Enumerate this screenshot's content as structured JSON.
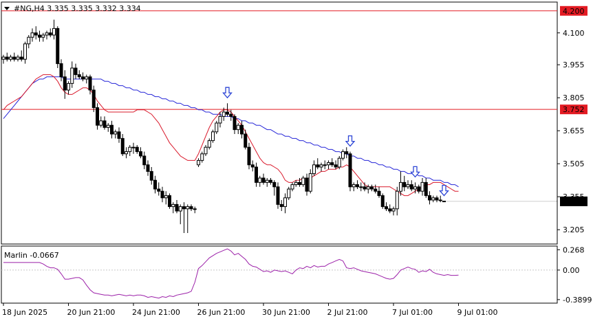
{
  "header": {
    "symbol_line": "#NG,H4  3.335 3.335 3.332 3.334"
  },
  "colors": {
    "red_line": "#e31b23",
    "ma_blue": "#2424d8",
    "ma_red": "#d9182a",
    "marlin": "#9b1fa8",
    "arrow": "#2e46d6",
    "candle": "#000000",
    "label_red_bg": "#e31b23",
    "label_dark_bg": "#000000"
  },
  "chart_data": [
    {
      "type": "candlestick",
      "title": "#NG,H4",
      "last_ohlc": {
        "open": 3.335,
        "high": 3.335,
        "low": 3.332,
        "close": 3.334
      },
      "ylim": [
        3.14,
        4.24
      ],
      "y_ticks": [
        "4.100",
        "3.955",
        "3.805",
        "3.655",
        "3.505",
        "3.355",
        "3.205"
      ],
      "y_tick_values": [
        4.1,
        3.955,
        3.805,
        3.655,
        3.505,
        3.355,
        3.205
      ],
      "x_ticks": [
        "18 Jun 2025",
        "20 Jun 21:00",
        "24 Jun 21:00",
        "26 Jun 21:00",
        "30 Jun 21:00",
        "2 Jul 21:00",
        "7 Jul 01:00",
        "9 Jul 01:00"
      ],
      "x_tick_index": [
        0,
        18,
        36,
        54,
        72,
        90,
        108,
        126
      ],
      "horizontal_levels": [
        {
          "value": 4.2,
          "label": "4.200"
        },
        {
          "value": 3.752,
          "label": "3.752"
        }
      ],
      "current_price": {
        "value": 3.334,
        "label": "3.334"
      },
      "arrow_markers_index": [
        62,
        96,
        114,
        122
      ],
      "ohlc": [
        [
          3.98,
          4.0,
          3.96,
          3.99
        ],
        [
          3.99,
          4.01,
          3.97,
          3.98
        ],
        [
          3.98,
          4.0,
          3.97,
          3.99
        ],
        [
          3.99,
          4.01,
          3.97,
          3.98
        ],
        [
          3.98,
          4.0,
          3.97,
          3.99
        ],
        [
          3.99,
          4.02,
          3.97,
          3.98
        ],
        [
          3.98,
          4.06,
          3.96,
          4.05
        ],
        [
          4.05,
          4.09,
          4.03,
          4.08
        ],
        [
          4.08,
          4.12,
          4.06,
          4.1
        ],
        [
          4.1,
          4.13,
          4.07,
          4.09
        ],
        [
          4.09,
          4.11,
          4.06,
          4.08
        ],
        [
          4.08,
          4.1,
          4.06,
          4.09
        ],
        [
          4.09,
          4.11,
          4.07,
          4.1
        ],
        [
          4.1,
          4.12,
          4.08,
          4.09
        ],
        [
          4.09,
          4.16,
          4.07,
          4.12
        ],
        [
          4.12,
          4.13,
          3.94,
          3.96
        ],
        [
          3.96,
          3.98,
          3.88,
          3.9
        ],
        [
          3.9,
          3.93,
          3.8,
          3.84
        ],
        [
          3.84,
          3.88,
          3.82,
          3.87
        ],
        [
          3.87,
          3.97,
          3.85,
          3.94
        ],
        [
          3.94,
          3.96,
          3.89,
          3.91
        ],
        [
          3.91,
          3.93,
          3.89,
          3.9
        ],
        [
          3.9,
          3.92,
          3.88,
          3.89
        ],
        [
          3.89,
          3.91,
          3.87,
          3.9
        ],
        [
          3.9,
          3.91,
          3.82,
          3.84
        ],
        [
          3.84,
          3.86,
          3.74,
          3.76
        ],
        [
          3.76,
          3.78,
          3.66,
          3.68
        ],
        [
          3.68,
          3.72,
          3.67,
          3.7
        ],
        [
          3.7,
          3.72,
          3.66,
          3.67
        ],
        [
          3.67,
          3.69,
          3.65,
          3.68
        ],
        [
          3.68,
          3.7,
          3.62,
          3.64
        ],
        [
          3.64,
          3.66,
          3.62,
          3.65
        ],
        [
          3.65,
          3.67,
          3.6,
          3.62
        ],
        [
          3.62,
          3.64,
          3.54,
          3.55
        ],
        [
          3.55,
          3.58,
          3.53,
          3.56
        ],
        [
          3.56,
          3.59,
          3.54,
          3.58
        ],
        [
          3.58,
          3.6,
          3.55,
          3.58
        ],
        [
          3.58,
          3.59,
          3.55,
          3.56
        ],
        [
          3.56,
          3.58,
          3.53,
          3.54
        ],
        [
          3.54,
          3.56,
          3.48,
          3.5
        ],
        [
          3.5,
          3.52,
          3.45,
          3.47
        ],
        [
          3.47,
          3.49,
          3.41,
          3.43
        ],
        [
          3.43,
          3.45,
          3.37,
          3.39
        ],
        [
          3.39,
          3.42,
          3.36,
          3.38
        ],
        [
          3.38,
          3.4,
          3.33,
          3.35
        ],
        [
          3.35,
          3.38,
          3.32,
          3.36
        ],
        [
          3.36,
          3.37,
          3.3,
          3.31
        ],
        [
          3.31,
          3.33,
          3.28,
          3.32
        ],
        [
          3.32,
          3.34,
          3.28,
          3.29
        ],
        [
          3.29,
          3.32,
          3.23,
          3.31
        ],
        [
          3.31,
          3.33,
          3.19,
          3.3
        ],
        [
          3.3,
          3.32,
          3.19,
          3.31
        ],
        [
          3.31,
          3.32,
          3.29,
          3.3
        ],
        [
          3.3,
          3.31,
          3.28,
          3.3
        ],
        [
          3.5,
          3.53,
          3.49,
          3.52
        ],
        [
          3.52,
          3.56,
          3.51,
          3.55
        ],
        [
          3.55,
          3.59,
          3.54,
          3.58
        ],
        [
          3.58,
          3.62,
          3.57,
          3.61
        ],
        [
          3.61,
          3.66,
          3.6,
          3.65
        ],
        [
          3.65,
          3.7,
          3.64,
          3.69
        ],
        [
          3.69,
          3.74,
          3.67,
          3.72
        ],
        [
          3.72,
          3.76,
          3.7,
          3.74
        ],
        [
          3.74,
          3.78,
          3.72,
          3.73
        ],
        [
          3.73,
          3.75,
          3.7,
          3.72
        ],
        [
          3.72,
          3.73,
          3.64,
          3.66
        ],
        [
          3.66,
          3.69,
          3.64,
          3.68
        ],
        [
          3.68,
          3.7,
          3.62,
          3.64
        ],
        [
          3.64,
          3.66,
          3.57,
          3.58
        ],
        [
          3.58,
          3.6,
          3.48,
          3.5
        ],
        [
          3.5,
          3.52,
          3.47,
          3.49
        ],
        [
          3.49,
          3.51,
          3.4,
          3.42
        ],
        [
          3.42,
          3.45,
          3.4,
          3.44
        ],
        [
          3.44,
          3.46,
          3.41,
          3.42
        ],
        [
          3.42,
          3.44,
          3.4,
          3.43
        ],
        [
          3.43,
          3.44,
          3.41,
          3.42
        ],
        [
          3.42,
          3.43,
          3.36,
          3.4
        ],
        [
          3.4,
          3.42,
          3.3,
          3.32
        ],
        [
          3.32,
          3.34,
          3.29,
          3.31
        ],
        [
          3.31,
          3.37,
          3.28,
          3.35
        ],
        [
          3.35,
          3.4,
          3.34,
          3.39
        ],
        [
          3.39,
          3.42,
          3.38,
          3.41
        ],
        [
          3.41,
          3.43,
          3.4,
          3.42
        ],
        [
          3.42,
          3.44,
          3.4,
          3.41
        ],
        [
          3.41,
          3.45,
          3.4,
          3.44
        ],
        [
          3.44,
          3.46,
          3.36,
          3.38
        ],
        [
          3.38,
          3.48,
          3.37,
          3.46
        ],
        [
          3.46,
          3.52,
          3.45,
          3.5
        ],
        [
          3.5,
          3.53,
          3.48,
          3.49
        ],
        [
          3.49,
          3.51,
          3.47,
          3.5
        ],
        [
          3.5,
          3.52,
          3.48,
          3.5
        ],
        [
          3.5,
          3.52,
          3.48,
          3.51
        ],
        [
          3.51,
          3.53,
          3.49,
          3.5
        ],
        [
          3.5,
          3.52,
          3.48,
          3.49
        ],
        [
          3.49,
          3.54,
          3.48,
          3.53
        ],
        [
          3.53,
          3.57,
          3.52,
          3.56
        ],
        [
          3.56,
          3.58,
          3.53,
          3.55
        ],
        [
          3.55,
          3.56,
          3.38,
          3.4
        ],
        [
          3.4,
          3.42,
          3.38,
          3.41
        ],
        [
          3.41,
          3.43,
          3.39,
          3.4
        ],
        [
          3.4,
          3.42,
          3.38,
          3.4
        ],
        [
          3.4,
          3.42,
          3.38,
          3.39
        ],
        [
          3.39,
          3.41,
          3.37,
          3.4
        ],
        [
          3.4,
          3.41,
          3.38,
          3.39
        ],
        [
          3.39,
          3.41,
          3.37,
          3.38
        ],
        [
          3.38,
          3.4,
          3.35,
          3.36
        ],
        [
          3.36,
          3.37,
          3.3,
          3.31
        ],
        [
          3.31,
          3.33,
          3.29,
          3.3
        ],
        [
          3.3,
          3.32,
          3.28,
          3.29
        ],
        [
          3.29,
          3.31,
          3.27,
          3.3
        ],
        [
          3.3,
          3.4,
          3.27,
          3.38
        ],
        [
          3.38,
          3.47,
          3.36,
          3.42
        ],
        [
          3.42,
          3.45,
          3.38,
          3.4
        ],
        [
          3.4,
          3.43,
          3.39,
          3.41
        ],
        [
          3.41,
          3.43,
          3.38,
          3.39
        ],
        [
          3.39,
          3.42,
          3.37,
          3.4
        ],
        [
          3.4,
          3.41,
          3.37,
          3.38
        ],
        [
          3.38,
          3.44,
          3.36,
          3.42
        ],
        [
          3.42,
          3.44,
          3.35,
          3.36
        ],
        [
          3.36,
          3.38,
          3.32,
          3.34
        ],
        [
          3.34,
          3.36,
          3.33,
          3.35
        ],
        [
          3.35,
          3.36,
          3.33,
          3.34
        ],
        [
          3.34,
          3.36,
          3.33,
          3.34
        ],
        [
          3.335,
          3.335,
          3.332,
          3.334
        ]
      ],
      "ma_blue": [
        3.71,
        3.73,
        3.75,
        3.77,
        3.79,
        3.81,
        3.83,
        3.85,
        3.87,
        3.88,
        3.89,
        3.89,
        3.9,
        3.9,
        3.9,
        3.9,
        3.9,
        3.89,
        3.89,
        3.89,
        3.89,
        3.89,
        3.89,
        3.89,
        3.89,
        3.89,
        3.89,
        3.89,
        3.88,
        3.88,
        3.87,
        3.87,
        3.86,
        3.86,
        3.85,
        3.85,
        3.84,
        3.84,
        3.83,
        3.83,
        3.82,
        3.82,
        3.81,
        3.81,
        3.8,
        3.8,
        3.79,
        3.79,
        3.78,
        3.78,
        3.77,
        3.77,
        3.76,
        3.76,
        3.75,
        3.75,
        3.74,
        3.74,
        3.73,
        3.73,
        3.73,
        3.72,
        3.72,
        3.72,
        3.71,
        3.71,
        3.7,
        3.7,
        3.69,
        3.69,
        3.68,
        3.68,
        3.67,
        3.66,
        3.66,
        3.65,
        3.64,
        3.64,
        3.63,
        3.63,
        3.62,
        3.62,
        3.61,
        3.61,
        3.6,
        3.6,
        3.59,
        3.59,
        3.58,
        3.58,
        3.57,
        3.57,
        3.56,
        3.56,
        3.55,
        3.55,
        3.54,
        3.54,
        3.53,
        3.53,
        3.52,
        3.52,
        3.51,
        3.51,
        3.5,
        3.5,
        3.49,
        3.49,
        3.48,
        3.48,
        3.47,
        3.47,
        3.46,
        3.46,
        3.46,
        3.45,
        3.45,
        3.44,
        3.44,
        3.43,
        3.43,
        3.43,
        3.42,
        3.42,
        3.41,
        3.41,
        3.4
      ],
      "ma_red": [
        3.75,
        3.77,
        3.78,
        3.79,
        3.8,
        3.81,
        3.83,
        3.85,
        3.87,
        3.89,
        3.9,
        3.91,
        3.91,
        3.91,
        3.9,
        3.88,
        3.85,
        3.83,
        3.82,
        3.82,
        3.83,
        3.84,
        3.85,
        3.85,
        3.84,
        3.82,
        3.79,
        3.77,
        3.75,
        3.74,
        3.74,
        3.74,
        3.74,
        3.74,
        3.74,
        3.74,
        3.74,
        3.75,
        3.75,
        3.75,
        3.74,
        3.73,
        3.71,
        3.69,
        3.66,
        3.63,
        3.6,
        3.58,
        3.56,
        3.54,
        3.53,
        3.52,
        3.52,
        3.52,
        3.55,
        3.59,
        3.63,
        3.67,
        3.7,
        3.72,
        3.74,
        3.75,
        3.75,
        3.74,
        3.72,
        3.7,
        3.68,
        3.65,
        3.62,
        3.59,
        3.56,
        3.53,
        3.51,
        3.5,
        3.5,
        3.49,
        3.48,
        3.46,
        3.43,
        3.42,
        3.42,
        3.43,
        3.43,
        3.44,
        3.44,
        3.44,
        3.45,
        3.46,
        3.47,
        3.47,
        3.48,
        3.48,
        3.48,
        3.49,
        3.49,
        3.5,
        3.49,
        3.47,
        3.45,
        3.43,
        3.41,
        3.4,
        3.4,
        3.4,
        3.4,
        3.4,
        3.4,
        3.4,
        3.39,
        3.38,
        3.37,
        3.36,
        3.36,
        3.37,
        3.38,
        3.39,
        3.4,
        3.41,
        3.41,
        3.42,
        3.42,
        3.42,
        3.41,
        3.4,
        3.39,
        3.38,
        3.38
      ]
    },
    {
      "type": "line",
      "title": "Marlin -0.0667",
      "ylim": [
        -0.4,
        0.28
      ],
      "y_ticks": [
        "0.268",
        "0.00",
        "-0.3899"
      ],
      "y_tick_values": [
        0.268,
        0.0,
        -0.3899
      ],
      "series": [
        {
          "values": [
            0.1,
            0.1,
            0.1,
            0.1,
            0.1,
            0.1,
            0.1,
            0.1,
            0.1,
            0.1,
            0.1,
            0.08,
            0.05,
            0.03,
            0.03,
            0.01,
            -0.05,
            -0.12,
            -0.12,
            -0.11,
            -0.1,
            -0.1,
            -0.13,
            -0.2,
            -0.26,
            -0.3,
            -0.31,
            -0.32,
            -0.33,
            -0.33,
            -0.34,
            -0.33,
            -0.32,
            -0.33,
            -0.34,
            -0.33,
            -0.34,
            -0.33,
            -0.33,
            -0.34,
            -0.36,
            -0.35,
            -0.36,
            -0.37,
            -0.35,
            -0.36,
            -0.34,
            -0.35,
            -0.33,
            -0.32,
            -0.31,
            -0.3,
            -0.28,
            -0.16,
            0.02,
            0.06,
            0.11,
            0.16,
            0.19,
            0.22,
            0.24,
            0.26,
            0.28,
            0.25,
            0.2,
            0.22,
            0.18,
            0.14,
            0.08,
            0.05,
            0.04,
            0.01,
            -0.02,
            -0.01,
            -0.03,
            0.0,
            -0.01,
            -0.02,
            -0.01,
            -0.03,
            -0.05,
            0.0,
            0.03,
            0.02,
            0.05,
            0.03,
            0.06,
            0.04,
            0.05,
            0.05,
            0.08,
            0.1,
            0.12,
            0.14,
            0.12,
            0.03,
            0.02,
            0.03,
            0.01,
            -0.01,
            -0.02,
            -0.03,
            -0.04,
            -0.05,
            -0.07,
            -0.09,
            -0.11,
            -0.12,
            -0.11,
            -0.06,
            0.0,
            0.02,
            0.04,
            0.02,
            0.01,
            -0.03,
            -0.01,
            -0.02,
            0.01,
            -0.03,
            -0.05,
            -0.06,
            -0.07,
            -0.06,
            -0.07,
            -0.07,
            -0.0667
          ]
        }
      ]
    }
  ]
}
